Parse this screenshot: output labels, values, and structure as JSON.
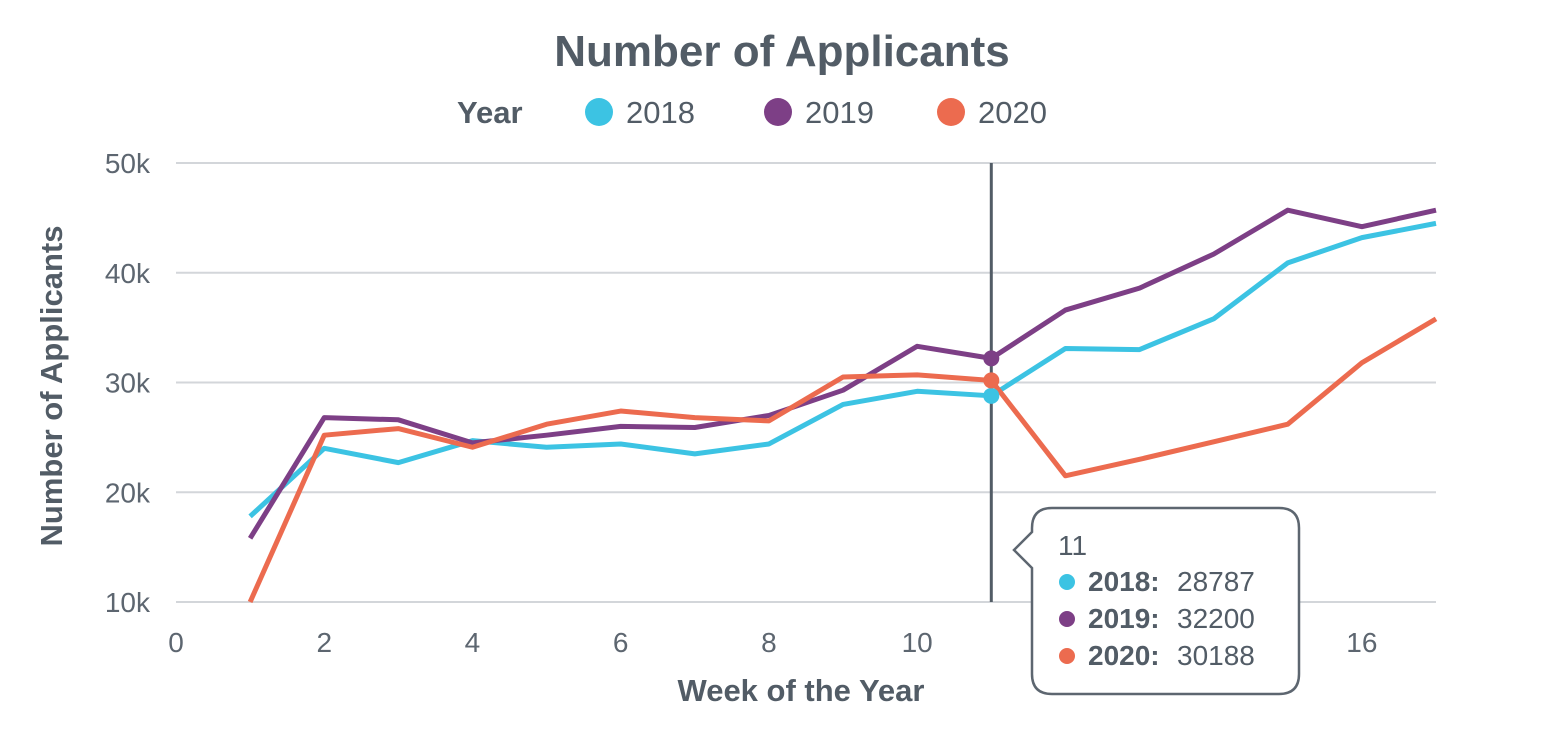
{
  "chart_data": {
    "type": "line",
    "title": "Number of Applicants",
    "legend": {
      "title": "Year",
      "placement": "top-center"
    },
    "xlabel": "Week of the Year",
    "ylabel": "Number of Applicants",
    "xlim": [
      0,
      17
    ],
    "ylim": [
      10000,
      50000
    ],
    "grid": true,
    "x_ticks": [
      {
        "value": 0,
        "label": "0"
      },
      {
        "value": 2,
        "label": "2"
      },
      {
        "value": 4,
        "label": "4"
      },
      {
        "value": 6,
        "label": "6"
      },
      {
        "value": 8,
        "label": "8"
      },
      {
        "value": 10,
        "label": "10"
      },
      {
        "value": 16,
        "label": "16"
      }
    ],
    "y_ticks": [
      {
        "value": 10000,
        "label": "10k"
      },
      {
        "value": 20000,
        "label": "20k"
      },
      {
        "value": 30000,
        "label": "30k"
      },
      {
        "value": 40000,
        "label": "40k"
      },
      {
        "value": 50000,
        "label": "50k"
      }
    ],
    "x": [
      1,
      2,
      3,
      4,
      5,
      6,
      7,
      8,
      9,
      10,
      11,
      12,
      13,
      14,
      15,
      16,
      17
    ],
    "series": [
      {
        "name": "2018",
        "color": "#3cc3e3",
        "values": [
          17800,
          24000,
          22700,
          24700,
          24100,
          24400,
          23500,
          24400,
          28000,
          29200,
          28787,
          33100,
          33000,
          35800,
          40900,
          43200,
          44500
        ]
      },
      {
        "name": "2019",
        "color": "#7d3f86",
        "values": [
          15800,
          26800,
          26600,
          24500,
          25200,
          26000,
          25900,
          27000,
          29300,
          33300,
          32200,
          36600,
          38600,
          41700,
          45700,
          44200,
          45700
        ]
      },
      {
        "name": "2020",
        "color": "#ec6b4f",
        "values": [
          10000,
          25200,
          25800,
          24100,
          26200,
          27400,
          26800,
          26500,
          30500,
          30700,
          30188,
          21500,
          23000,
          24600,
          26200,
          31800,
          35800
        ]
      }
    ],
    "tooltip": {
      "x": 11,
      "title": "11",
      "items": [
        {
          "label": "2018:",
          "value": "28787",
          "color": "#3cc3e3"
        },
        {
          "label": "2019:",
          "value": "32200",
          "color": "#7d3f86"
        },
        {
          "label": "2020:",
          "value": "30188",
          "color": "#ec6b4f"
        }
      ]
    },
    "crosshair_color": "#525c66",
    "text_color": "#525c66",
    "grid_color": "#d3d6da"
  }
}
